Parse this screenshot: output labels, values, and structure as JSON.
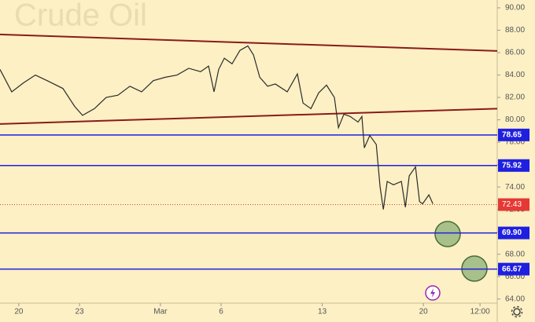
{
  "chart_data": {
    "type": "line",
    "watermark": "Crude Oil",
    "x": [
      -0.93,
      -0.35,
      0.23,
      0.82,
      1.4,
      2.18,
      2.76,
      3.15,
      3.74,
      4.32,
      4.9,
      5.49,
      6.07,
      6.65,
      7.24,
      7.82,
      8.4,
      8.99,
      9.38,
      9.65,
      9.88,
      10.16,
      10.54,
      10.93,
      11.32,
      11.6,
      11.91,
      12.3,
      12.68,
      13.27,
      13.77,
      14.05,
      14.44,
      14.82,
      15.21,
      15.6,
      15.8,
      16.07,
      16.38,
      16.77,
      16.96,
      17.08,
      17.35,
      17.67,
      17.86,
      18.02,
      18.21,
      18.52,
      18.91,
      19.11,
      19.3,
      19.61,
      19.81,
      19.96,
      20.27,
      20.47
    ],
    "series": [
      {
        "color": "#2b2b2b",
        "values": [
          84.5,
          82.5,
          83.3,
          84.0,
          83.5,
          82.8,
          81.2,
          80.4,
          81.0,
          82.0,
          82.2,
          83.0,
          82.5,
          83.5,
          83.8,
          84.0,
          84.6,
          84.3,
          84.8,
          82.5,
          84.5,
          85.5,
          85.0,
          86.2,
          86.6,
          85.8,
          83.8,
          83.0,
          83.2,
          82.5,
          84.1,
          81.5,
          81.0,
          82.4,
          83.1,
          82.0,
          79.3,
          80.5,
          80.3,
          79.8,
          80.3,
          77.5,
          78.6,
          77.8,
          74.0,
          72.0,
          74.5,
          74.2,
          74.5,
          72.2,
          75.0,
          75.8,
          72.7,
          72.5,
          73.3,
          72.5
        ]
      }
    ],
    "trendlines": [
      {
        "color": "#8b1a1a",
        "x": [
          -0.93,
          23.65
        ],
        "values": [
          87.62,
          86.15
        ]
      },
      {
        "color": "#8b1a1a",
        "x": [
          -0.93,
          23.65
        ],
        "values": [
          79.63,
          81.0
        ]
      }
    ],
    "levels": {
      "color": "#1f1fe0",
      "values": [
        78.65,
        75.92,
        69.9,
        66.67
      ],
      "value_labels": [
        "78.65",
        "75.92",
        "69.90",
        "66.67"
      ]
    },
    "last_price": {
      "color": "#e53935",
      "value": 72.43
    },
    "xlim": [
      -0.93,
      23.65
    ],
    "xticks": [
      {
        "value": 0,
        "label": "20"
      },
      {
        "value": 3,
        "label": "23"
      },
      {
        "value": 7,
        "label": "Mar"
      },
      {
        "value": 10,
        "label": "6"
      },
      {
        "value": 15,
        "label": "13"
      },
      {
        "value": 20,
        "label": "20"
      },
      {
        "value": 22.8,
        "label": "12:00"
      }
    ],
    "ylim": [
      63.35,
      90.7
    ],
    "yticks": [
      {
        "value": 64,
        "label": "64.00"
      },
      {
        "value": 66,
        "label": "66.00"
      },
      {
        "value": 68,
        "label": "68.00"
      },
      {
        "value": 70,
        "label": "70.00"
      },
      {
        "value": 72,
        "label": "72.00"
      },
      {
        "value": 74,
        "label": "74.00"
      },
      {
        "value": 76,
        "label": "76.00"
      },
      {
        "value": 78,
        "label": "78.00"
      },
      {
        "value": 80,
        "label": "80.00"
      },
      {
        "value": 82,
        "label": "82.00"
      },
      {
        "value": 84,
        "label": "84.00"
      },
      {
        "value": 86,
        "label": "86.00"
      },
      {
        "value": 88,
        "label": "88.00"
      },
      {
        "value": 90,
        "label": "90.00"
      }
    ]
  }
}
